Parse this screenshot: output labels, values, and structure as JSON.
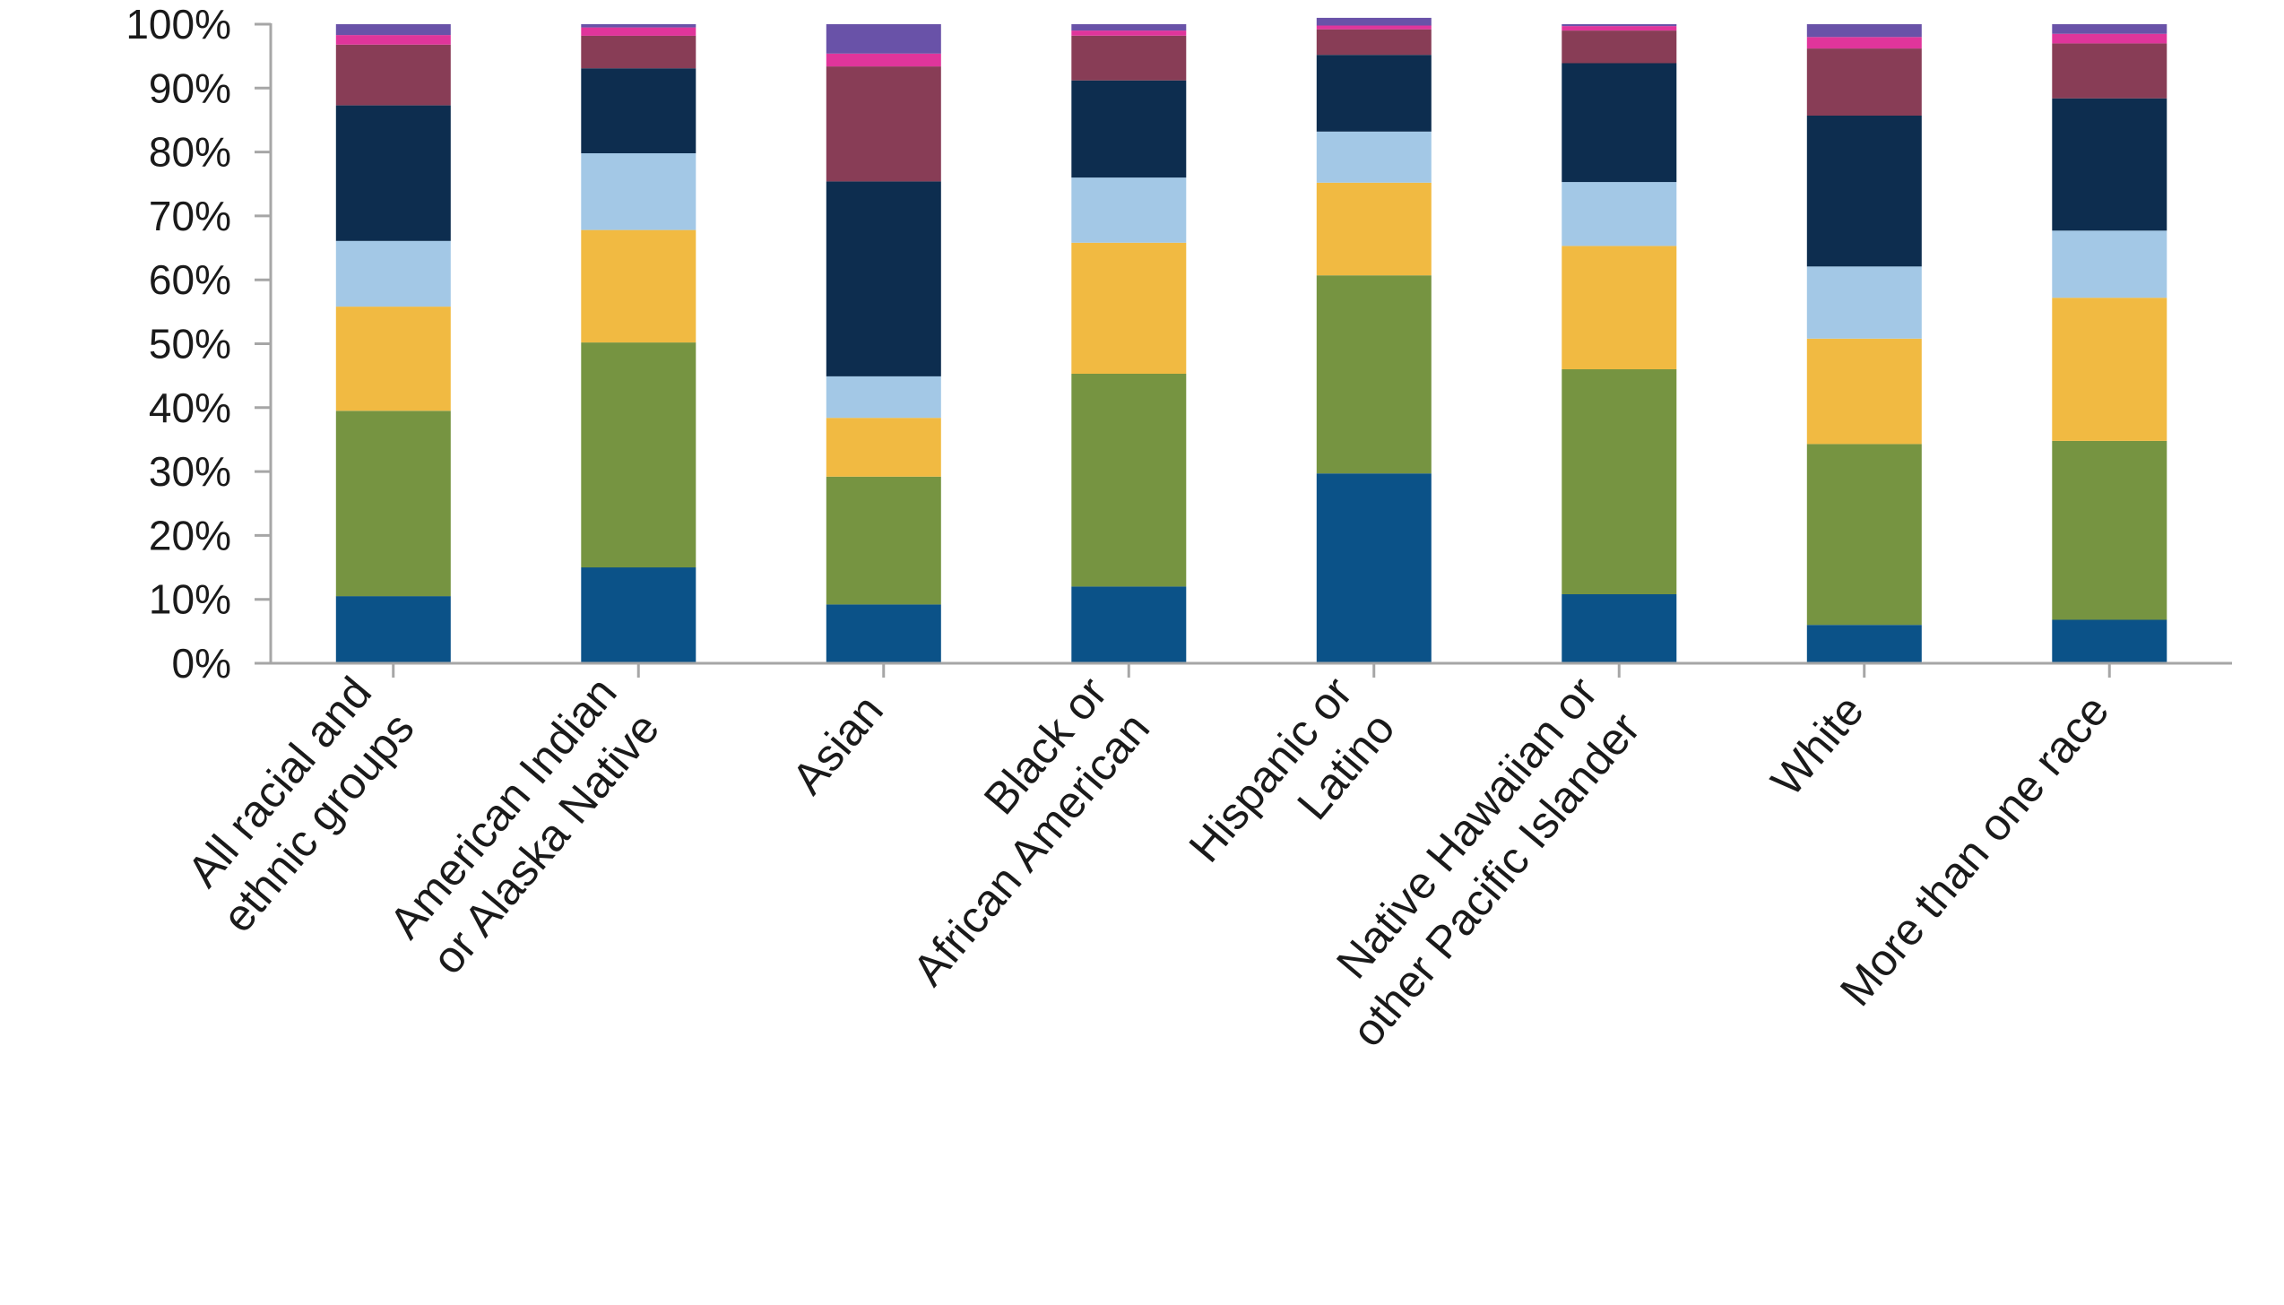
{
  "chart_data": {
    "type": "bar",
    "stacked": true,
    "title": "",
    "xlabel": "",
    "ylabel": "",
    "ylim": [
      0,
      100
    ],
    "yticks": [
      "0%",
      "10%",
      "20%",
      "30%",
      "40%",
      "50%",
      "60%",
      "70%",
      "80%",
      "90%",
      "100%"
    ],
    "categories": [
      [
        "All racial and",
        "ethnic groups"
      ],
      [
        "American Indian",
        "or Alaska Native"
      ],
      [
        "Asian"
      ],
      [
        "Black or",
        "African American"
      ],
      [
        "Hispanic or",
        "Latino"
      ],
      [
        "Native Hawaiian or",
        "other Pacific Islander"
      ],
      [
        "White"
      ],
      [
        "More than one race"
      ]
    ],
    "series": [
      {
        "color": "#0b5288",
        "values": [
          10.5,
          15,
          9.2,
          12,
          29.7,
          10.8,
          6,
          6.8
        ]
      },
      {
        "color": "#769441",
        "values": [
          29,
          35.2,
          20,
          33.3,
          31,
          35.2,
          28.3,
          28
        ]
      },
      {
        "color": "#f1ba42",
        "values": [
          16.3,
          17.6,
          9.2,
          20.5,
          14.5,
          19.3,
          16.5,
          22.4
        ]
      },
      {
        "color": "#a3c8e6",
        "values": [
          10.3,
          12,
          6.5,
          10.2,
          8,
          10,
          11.3,
          10.5
        ]
      },
      {
        "color": "#0d2d4f",
        "values": [
          21.2,
          13.3,
          30.5,
          15.2,
          12,
          18.6,
          23.6,
          20.7
        ]
      },
      {
        "color": "#883d56",
        "values": [
          9.5,
          5.1,
          18,
          7,
          4,
          5.1,
          10.5,
          8.6
        ]
      },
      {
        "color": "#e0359b",
        "values": [
          1.5,
          1.3,
          2,
          0.8,
          0.6,
          0.7,
          1.8,
          1.5
        ]
      },
      {
        "color": "#6952a8",
        "values": [
          1.7,
          0.5,
          4.6,
          1,
          1.2,
          0.3,
          2,
          1.5
        ]
      }
    ]
  }
}
